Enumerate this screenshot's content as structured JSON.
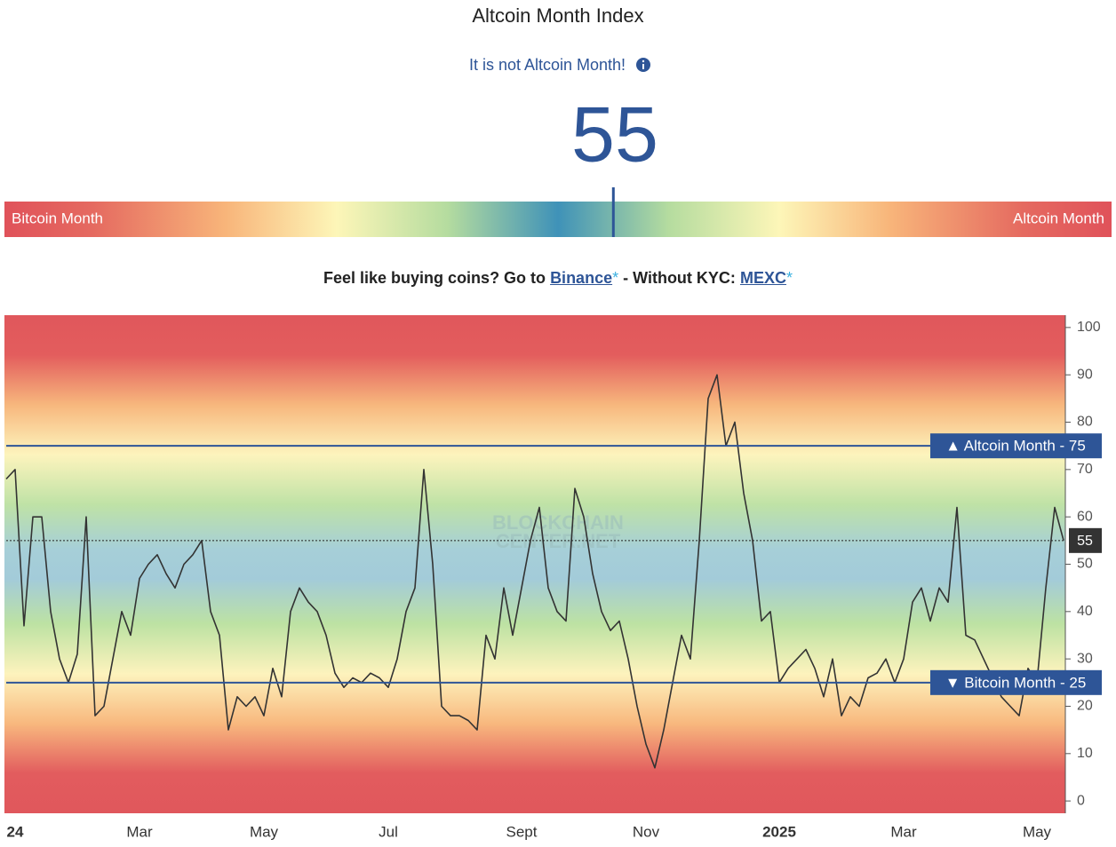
{
  "header": {
    "title": "Altcoin Month Index",
    "status": "It is not Altcoin Month!",
    "value": 55,
    "gauge_left": "Bitcoin Month",
    "gauge_right": "Altcoin Month"
  },
  "promo": {
    "prefix": "Feel like buying coins? Go to",
    "link1": "Binance",
    "mid": "- Without KYC:",
    "link2": "MEXC",
    "asterisk": "*"
  },
  "chart_data": {
    "type": "line",
    "color": "#333333",
    "watermark": [
      "BLOCKCHAIN",
      "CENTER.NET"
    ],
    "categories": [
      null,
      "24",
      null,
      null,
      null,
      null,
      null,
      null,
      null,
      null,
      null,
      null,
      null,
      null,
      null,
      "Mar",
      null,
      null,
      null,
      null,
      null,
      null,
      null,
      null,
      null,
      null,
      null,
      null,
      null,
      "May",
      null,
      null,
      null,
      null,
      null,
      null,
      null,
      null,
      null,
      null,
      null,
      null,
      null,
      "Jul",
      null,
      null,
      null,
      null,
      null,
      null,
      null,
      null,
      null,
      null,
      null,
      null,
      null,
      null,
      "Sept",
      null,
      null,
      null,
      null,
      null,
      null,
      null,
      null,
      null,
      null,
      null,
      null,
      null,
      "Nov",
      null,
      null,
      null,
      null,
      null,
      null,
      null,
      null,
      null,
      null,
      null,
      null,
      null,
      null,
      "2025",
      null,
      null,
      null,
      null,
      null,
      null,
      null,
      null,
      null,
      null,
      null,
      null,
      null,
      "Mar",
      null,
      null,
      null,
      null,
      null,
      null,
      null,
      null,
      null,
      null,
      null,
      null,
      null,
      null,
      "May",
      null,
      null,
      null
    ],
    "values": [
      68,
      70,
      37,
      60,
      60,
      40,
      30,
      25,
      31,
      60,
      18,
      20,
      30,
      40,
      35,
      47,
      50,
      52,
      48,
      45,
      50,
      52,
      55,
      40,
      35,
      15,
      22,
      20,
      22,
      18,
      28,
      22,
      40,
      45,
      42,
      40,
      35,
      27,
      24,
      26,
      25,
      27,
      26,
      24,
      30,
      40,
      45,
      70,
      50,
      20,
      18,
      18,
      17,
      15,
      35,
      30,
      45,
      35,
      45,
      55,
      62,
      45,
      40,
      38,
      66,
      60,
      48,
      40,
      36,
      38,
      30,
      20,
      12,
      7,
      15,
      25,
      35,
      30,
      55,
      85,
      90,
      75,
      80,
      65,
      55,
      38,
      40,
      25,
      28,
      30,
      32,
      28,
      22,
      30,
      18,
      22,
      20,
      26,
      27,
      30,
      25,
      30,
      42,
      45,
      38,
      45,
      42,
      62,
      35,
      34,
      30,
      26,
      22,
      20,
      18,
      28,
      25,
      45,
      62,
      55
    ],
    "ylim": [
      -2.6,
      102.6
    ],
    "yticks": [
      0,
      10,
      20,
      30,
      40,
      50,
      60,
      70,
      80,
      90,
      100
    ],
    "reference_lines": [
      {
        "value": 75,
        "label": "▲ Altcoin Month - 75"
      },
      {
        "value": 25,
        "label": "▼ Bitcoin Month - 25"
      }
    ]
  }
}
